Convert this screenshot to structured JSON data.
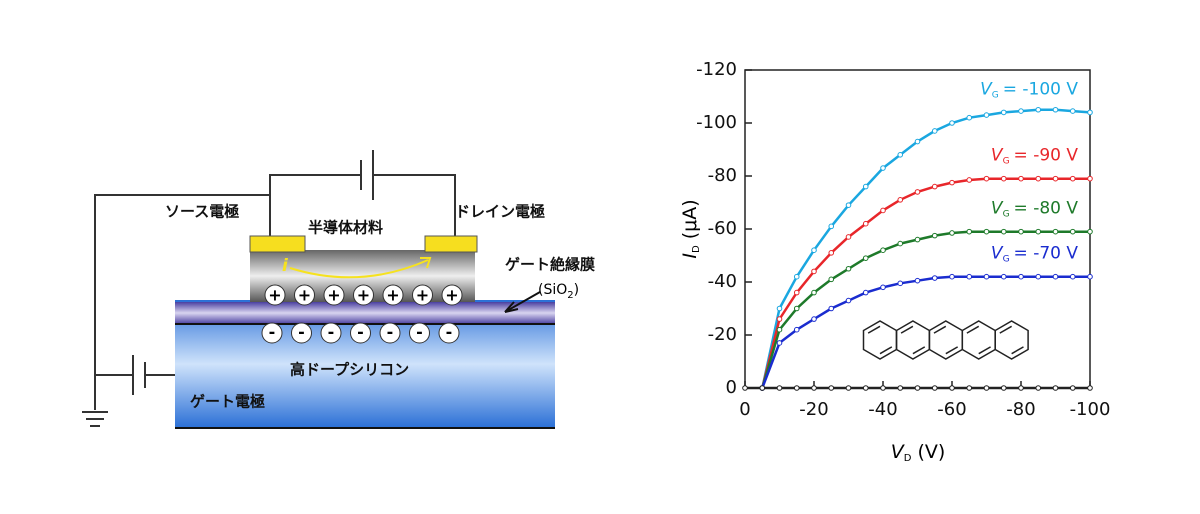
{
  "diagram": {
    "source": "ソース電極",
    "drain": "ドレイン電極",
    "semiconductor": "半導体材料",
    "current": "i",
    "insulator": "ゲート絶縁膜",
    "insulator_material": {
      "open": "(SiO",
      "sub": "2",
      "close": ")"
    },
    "silicon": "高ドープシリコン",
    "gate": "ゲート電極",
    "charges": {
      "plus": "+",
      "minus": "-"
    }
  },
  "chart_data": {
    "type": "line",
    "xlabel": {
      "symbol": "V",
      "subscript": "D",
      "unit": "(V)"
    },
    "ylabel": {
      "symbol": "I",
      "subscript": "D",
      "unit": "(μA)"
    },
    "xlim": [
      0,
      -100
    ],
    "xticks": [
      0,
      -20,
      -40,
      -60,
      -80,
      -100
    ],
    "ylim": [
      0,
      -120
    ],
    "yticks": [
      0,
      -20,
      -40,
      -60,
      -80,
      -100,
      -120
    ],
    "x": [
      0,
      -5,
      -10,
      -15,
      -20,
      -25,
      -30,
      -35,
      -40,
      -45,
      -50,
      -55,
      -60,
      -65,
      -70,
      -75,
      -80,
      -85,
      -90,
      -95,
      -100
    ],
    "series": [
      {
        "symbol": "V",
        "subscript": "G",
        "name": "= -100 V",
        "color": "#1aa7e0",
        "values": [
          null,
          0,
          -30,
          -42,
          -52,
          -61,
          -69,
          -76,
          -83,
          -88,
          -93,
          -97,
          -100,
          -102,
          -103,
          -104,
          -104.5,
          -105,
          -105,
          -104.5,
          -104
        ]
      },
      {
        "symbol": "V",
        "subscript": "G",
        "name": "= -90 V",
        "color": "#e8262a",
        "values": [
          null,
          0,
          -26,
          -36,
          -44,
          -51,
          -57,
          -62,
          -67,
          -71,
          -74,
          -76,
          -77.5,
          -78.5,
          -79,
          -79,
          -79,
          -79,
          -79,
          -79,
          -79
        ]
      },
      {
        "symbol": "V",
        "subscript": "G",
        "name": "= -80 V",
        "color": "#1e7a2a",
        "values": [
          null,
          0,
          -22,
          -30,
          -36,
          -41,
          -45,
          -49,
          -52,
          -54.5,
          -56,
          -57.5,
          -58.5,
          -59,
          -59,
          -59,
          -59,
          -59,
          -59,
          -59,
          -59
        ]
      },
      {
        "symbol": "V",
        "subscript": "G",
        "name": "= -70 V",
        "color": "#1a2ccf",
        "values": [
          null,
          0,
          -17,
          -22,
          -26,
          -30,
          -33,
          -36,
          -38,
          -39.5,
          -40.5,
          -41.5,
          -42,
          -42,
          -42,
          -42,
          -42,
          -42,
          -42,
          -42,
          -42
        ]
      },
      {
        "color": "#222222",
        "values": [
          0,
          0,
          0,
          0,
          0,
          0,
          0,
          0,
          0,
          0,
          0,
          0,
          0,
          0,
          0,
          0,
          0,
          0,
          0,
          0,
          0
        ]
      }
    ]
  }
}
